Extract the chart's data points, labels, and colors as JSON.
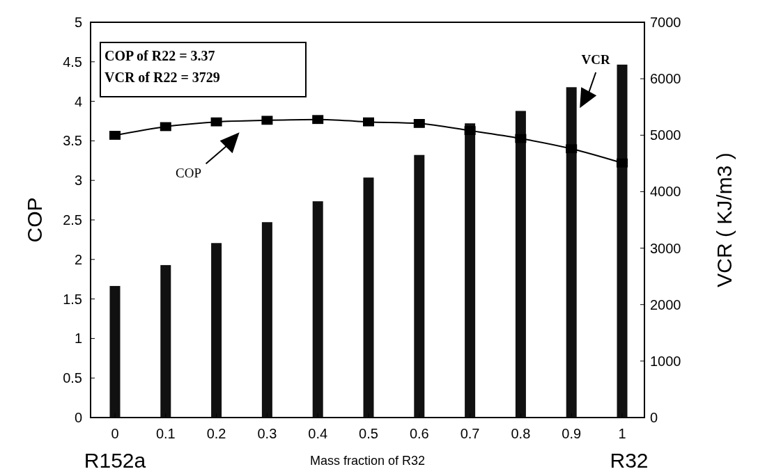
{
  "chart_data": {
    "type": "bar",
    "categories": [
      "0",
      "0.1",
      "0.2",
      "0.3",
      "0.4",
      "0.5",
      "0.6",
      "0.7",
      "0.8",
      "0.9",
      "1"
    ],
    "series": [
      {
        "name": "VCR",
        "axis": "y2",
        "color": "#111111",
        "values": [
          2330,
          2700,
          3090,
          3460,
          3830,
          4250,
          4650,
          5210,
          5430,
          5850,
          6250
        ]
      },
      {
        "name": "COP",
        "type": "line",
        "axis": "y",
        "color": "#000000",
        "marker": "square",
        "values": [
          3.57,
          3.68,
          3.74,
          3.76,
          3.77,
          3.74,
          3.72,
          3.63,
          3.53,
          3.4,
          3.22
        ]
      }
    ],
    "xlabel": "Mass fraction of R32",
    "ylabel": "COP",
    "y2label": "VCR ( KJ/m3 )",
    "ylim": [
      0,
      5
    ],
    "yticks": [
      0,
      0.5,
      1,
      1.5,
      2,
      2.5,
      3,
      3.5,
      4,
      4.5,
      5
    ],
    "y2lim": [
      0,
      7000
    ],
    "y2ticks": [
      0,
      1000,
      2000,
      3000,
      4000,
      5000,
      6000,
      7000
    ],
    "annotations": [
      "COP of R22 = 3.37\nVCR of R22 = 3729",
      "R152a",
      "R32"
    ],
    "grid": false
  }
}
